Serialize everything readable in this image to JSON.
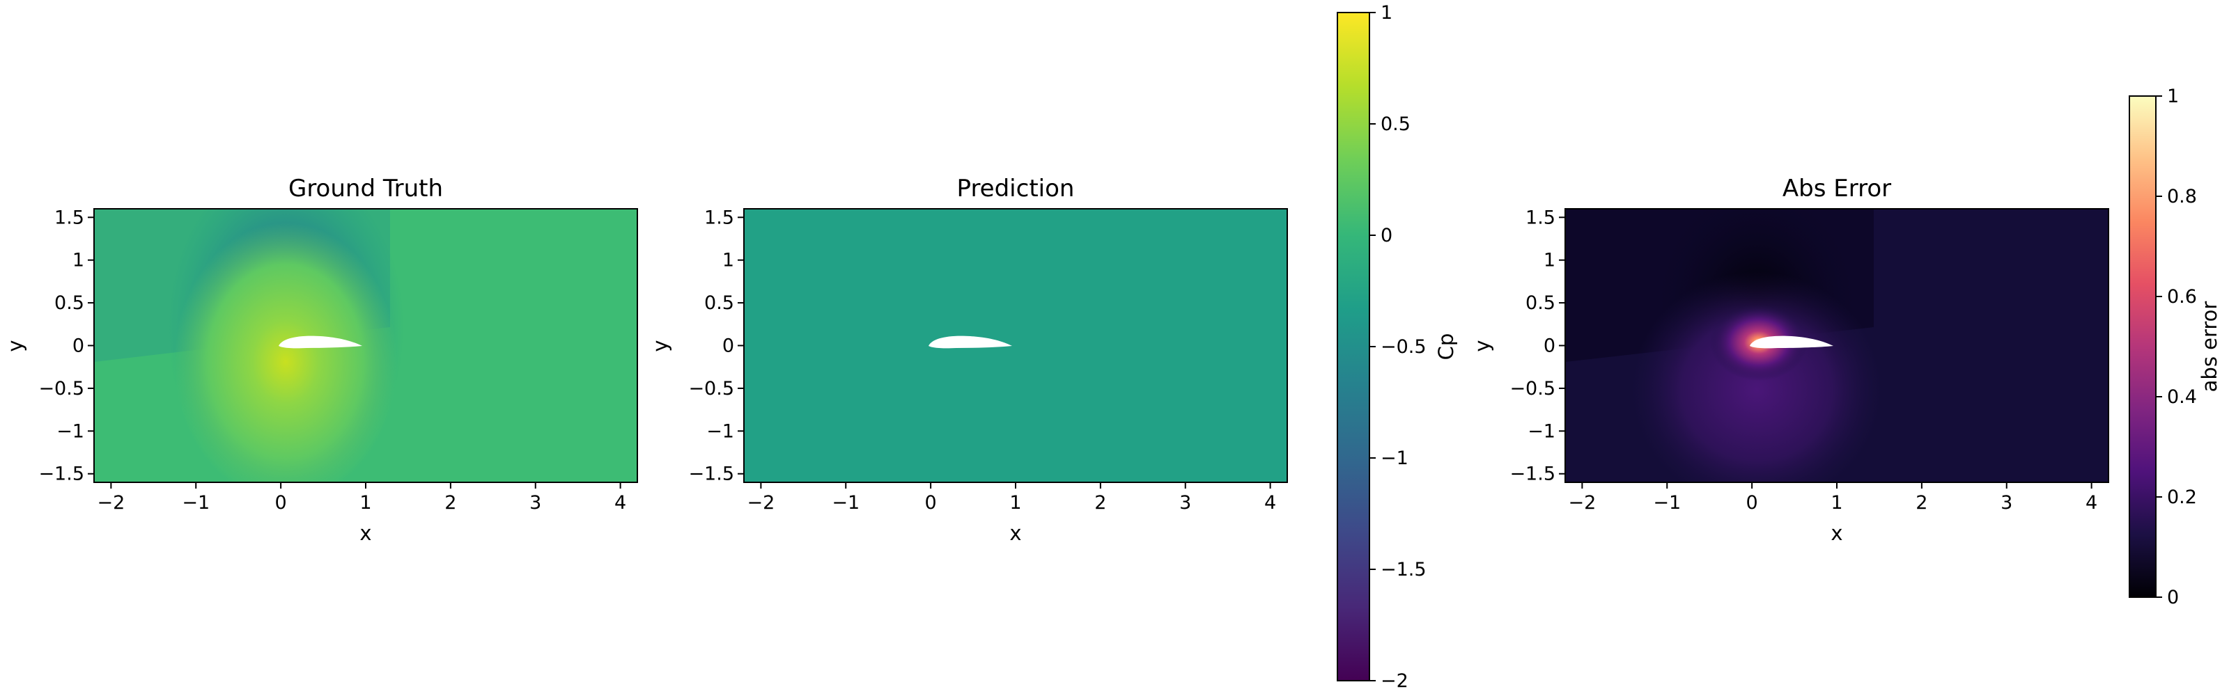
{
  "chart_data": [
    {
      "type": "heatmap",
      "title": "Ground Truth",
      "xlabel": "x",
      "ylabel": "y",
      "xlim": [
        -2.2,
        4.2
      ],
      "ylim": [
        -1.6,
        1.6
      ],
      "xticks": [
        -2,
        -1,
        0,
        1,
        2,
        3,
        4
      ],
      "yticks": [
        1.5,
        1.0,
        0.5,
        0.0,
        -0.5,
        -1.0,
        -1.5
      ],
      "colormap": "viridis",
      "field": "Cp"
    },
    {
      "type": "heatmap",
      "title": "Prediction",
      "xlabel": "x",
      "ylabel": "y",
      "xlim": [
        -2.2,
        4.2
      ],
      "ylim": [
        -1.6,
        1.6
      ],
      "xticks": [
        -2,
        -1,
        0,
        1,
        2,
        3,
        4
      ],
      "yticks": [
        1.5,
        1.0,
        0.5,
        0.0,
        -0.5,
        -1.0,
        -1.5
      ],
      "colormap": "viridis",
      "field": "Cp"
    },
    {
      "type": "heatmap",
      "title": "Abs Error",
      "xlabel": "x",
      "ylabel": "y",
      "xlim": [
        -2.2,
        4.2
      ],
      "ylim": [
        -1.6,
        1.6
      ],
      "xticks": [
        -2,
        -1,
        0,
        1,
        2,
        3,
        4
      ],
      "yticks": [
        1.5,
        1.0,
        0.5,
        0.0,
        -0.5,
        -1.0,
        -1.5
      ],
      "colormap": "magma",
      "field": "abs error"
    }
  ],
  "colorbars": [
    {
      "label": "Cp",
      "range": [
        -2.0,
        1.0
      ],
      "ticks": [
        1.0,
        0.5,
        0.0,
        -0.5,
        -1.0,
        -1.5,
        -2.0
      ],
      "colormap": "viridis",
      "colors": [
        "#440154",
        "#482878",
        "#3e4989",
        "#31688e",
        "#26828e",
        "#1f9e89",
        "#35b779",
        "#6ece58",
        "#b5de2b",
        "#fde725"
      ]
    },
    {
      "label": "abs error",
      "range": [
        0.0,
        1.0
      ],
      "ticks": [
        1.0,
        0.8,
        0.6,
        0.4,
        0.2,
        0.0
      ],
      "colormap": "magma",
      "colors": [
        "#000004",
        "#1c1044",
        "#4f127b",
        "#812581",
        "#b5367a",
        "#e55064",
        "#fb8761",
        "#fec287",
        "#fcfdbf"
      ]
    }
  ]
}
